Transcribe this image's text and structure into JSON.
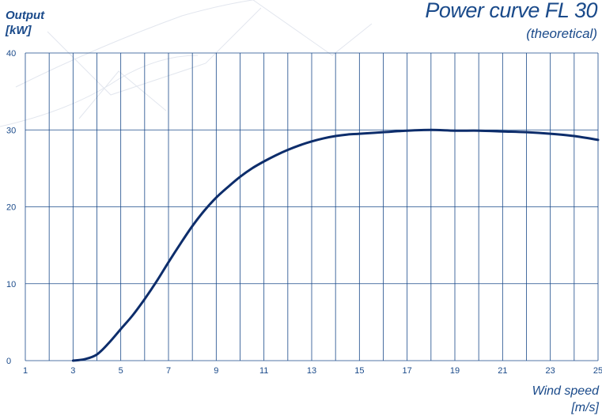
{
  "chart_data": {
    "type": "line",
    "title": "Power curve FL 30",
    "subtitle": "(theoretical)",
    "ylabel": "Output",
    "ylabel_unit": "[kW]",
    "xlabel": "Wind speed",
    "xlabel_unit": "[m/s]",
    "xlim": [
      1,
      25
    ],
    "ylim": [
      0,
      40
    ],
    "x_ticks": [
      1,
      3,
      5,
      7,
      9,
      11,
      13,
      15,
      17,
      19,
      21,
      23,
      25
    ],
    "y_ticks": [
      0,
      10,
      20,
      30,
      40
    ],
    "grid": true,
    "series": [
      {
        "name": "",
        "color": "#0d2d6b",
        "x": [
          3,
          3.5,
          4,
          4.5,
          5,
          5.5,
          6,
          6.5,
          7,
          7.5,
          8,
          8.5,
          9,
          9.5,
          10,
          10.5,
          11,
          11.5,
          12,
          12.5,
          13,
          13.5,
          14,
          14.5,
          15,
          16,
          17,
          18,
          19,
          20,
          21,
          22,
          23,
          24,
          25
        ],
        "y": [
          0,
          0.2,
          0.8,
          2.3,
          4.1,
          5.9,
          8.0,
          10.3,
          12.8,
          15.2,
          17.5,
          19.5,
          21.2,
          22.6,
          23.9,
          25.0,
          25.9,
          26.7,
          27.4,
          28.0,
          28.5,
          28.9,
          29.2,
          29.4,
          29.5,
          29.7,
          29.9,
          30.0,
          29.9,
          29.9,
          29.8,
          29.7,
          29.5,
          29.2,
          28.7
        ]
      }
    ]
  },
  "colors": {
    "grid": "#1a4a8a",
    "curve": "#0d2d6b",
    "text": "#1a4a8a"
  }
}
